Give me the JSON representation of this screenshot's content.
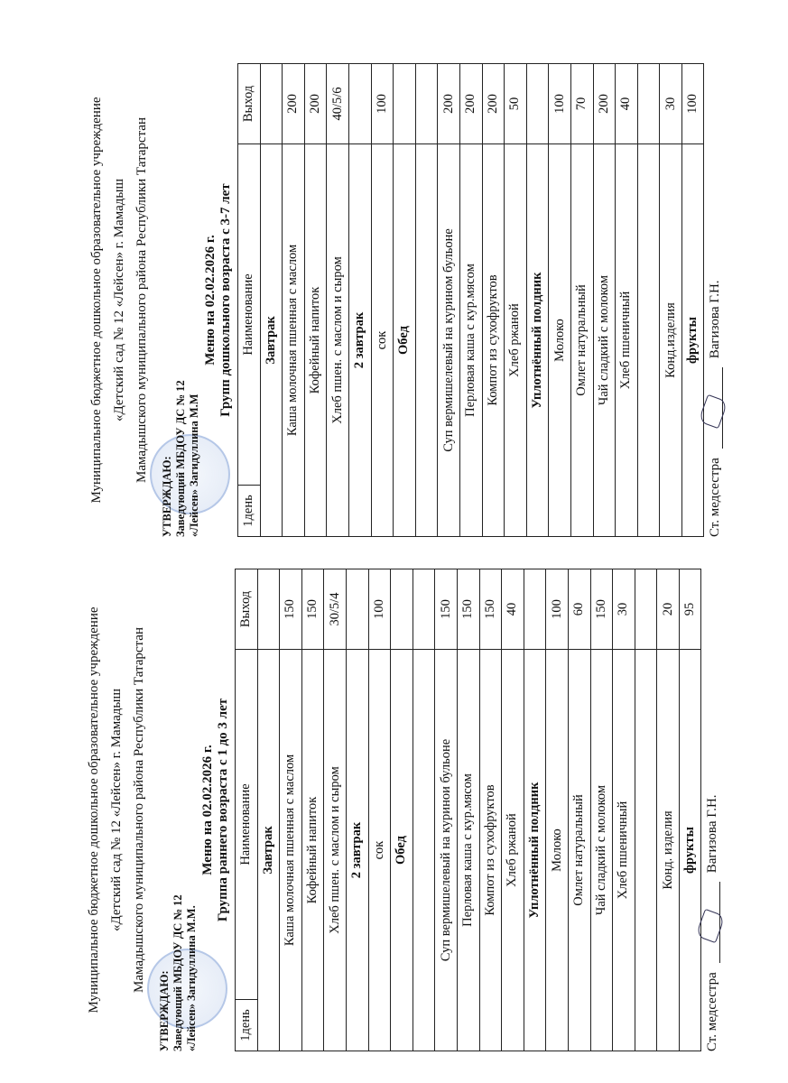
{
  "left": {
    "org": [
      "Муниципальное бюджетное дошкольное образовательное учреждение",
      "«Детский сад № 12 «Лейсен» г. Мамадыш",
      "Мамадышского муниципального района Республики Татарстан"
    ],
    "approve": [
      "УТВЕРЖДАЮ:",
      "Заведующий МБДОУ ДС № 12",
      "«Лейсен»  Загидуллина М.М."
    ],
    "menu_title": "Меню на 02.02.2026 г.",
    "group": "Группа раннего возраста  с 1 до 3 лет",
    "head": [
      "1день",
      "Наименование",
      "Выход"
    ],
    "rows": [
      {
        "t": "sec",
        "name": "Завтрак"
      },
      {
        "name": "Каша молочная пшенная с маслом",
        "out": "150"
      },
      {
        "name": "Кофейный напиток",
        "out": "150"
      },
      {
        "name": "Хлеб пшен. с маслом и сыром",
        "out": "30/5/4"
      },
      {
        "t": "sec",
        "name": "2 завтрак"
      },
      {
        "name": "сок",
        "out": "100"
      },
      {
        "t": "sec",
        "name": "Обед"
      },
      {
        "name": "",
        "out": ""
      },
      {
        "name": "Суп вермишелевый на куринои бульоне",
        "out": "150"
      },
      {
        "name": "Перловая каша  с   кур.мясом",
        "out": "150"
      },
      {
        "name": "Компот из сухофруктов",
        "out": "150"
      },
      {
        "name": "Хлеб ржаной",
        "out": "40"
      },
      {
        "t": "sec",
        "name": "Уплотнённый полдник"
      },
      {
        "name": "Молоко",
        "out": "100"
      },
      {
        "name": "Омлет натуральный",
        "out": "60"
      },
      {
        "name": "Чай сладкий  с молоком",
        "out": "150"
      },
      {
        "name": "Хлеб пшеничный",
        "out": "30"
      },
      {
        "name": "",
        "out": ""
      },
      {
        "name": "Конд. изделия",
        "out": "20"
      },
      {
        "t": "b",
        "name": "фрукты",
        "out": "95"
      }
    ],
    "signature": {
      "role": "Ст. медсестра",
      "name": "Вагизова Г.Н."
    }
  },
  "right": {
    "org": [
      "Муниципальное бюджетное дошкольное образовательное учреждение",
      "«Детский сад № 12 «Лейсен» г. Мамадыш",
      "Мамадышского муниципального района Республики Татарстан"
    ],
    "approve": [
      "УТВЕРЖДАЮ:",
      "Заведующий МБДОУ ДС № 12",
      "«Лейсен»  Загидуллина М.М"
    ],
    "menu_title": "Меню на 02.02.2026 г.",
    "group": "Групп дошкольного возраста с 3-7 лет",
    "head": [
      "1день",
      "Наименование",
      "Выход"
    ],
    "rows": [
      {
        "t": "sec",
        "name": "Завтрак"
      },
      {
        "name": "Каша молочная пшенная с маслом",
        "out": "200"
      },
      {
        "name": "Кофейный напиток",
        "out": "200"
      },
      {
        "name": "Хлеб пшен. с маслом и сыром",
        "out": "40/5/6"
      },
      {
        "t": "sec",
        "name": "2 завтрак"
      },
      {
        "name": "сок",
        "out": "100"
      },
      {
        "t": "sec",
        "name": "Обед"
      },
      {
        "name": "",
        "out": ""
      },
      {
        "name": "Суп вермишелевый  на курином бульоне",
        "out": "200"
      },
      {
        "name": "Перловая каша  с кур.мясом",
        "out": "200"
      },
      {
        "name": "Компот из сухофруктов",
        "out": "200"
      },
      {
        "name": "Хлеб ржаной",
        "out": "50"
      },
      {
        "t": "sec",
        "name": "Уплотнённый полдник"
      },
      {
        "name": "Молоко",
        "out": "100"
      },
      {
        "name": "Омлет натуральный",
        "out": "70"
      },
      {
        "name": "Чай сладкий  с молоком",
        "out": "200"
      },
      {
        "name": "Хлеб пшеничный",
        "out": "40"
      },
      {
        "name": "",
        "out": ""
      },
      {
        "name": "Конд.изделия",
        "out": "30"
      },
      {
        "t": "b",
        "name": "фрукты",
        "out": "100"
      }
    ],
    "signature": {
      "role": "Ст. медсестра",
      "name": "Вагизова Г.Н."
    }
  }
}
